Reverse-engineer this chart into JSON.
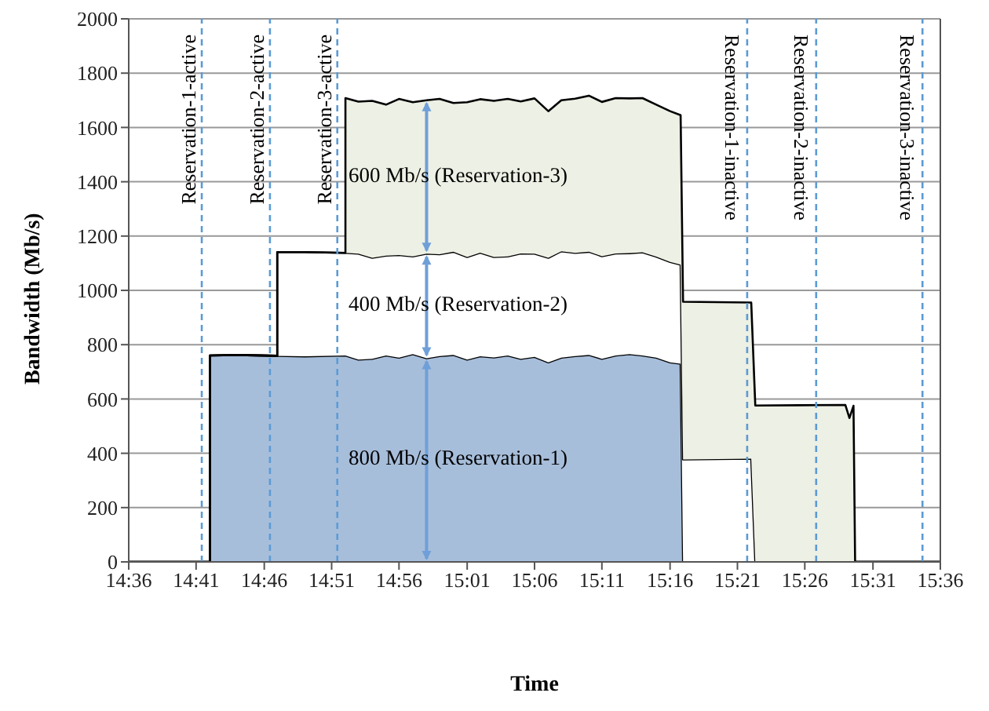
{
  "chart_data": {
    "type": "area",
    "stacked": true,
    "xlabel": "Time",
    "ylabel": "Bandwidth (Mb/s)",
    "x": [
      14.6,
      14.7,
      14.7,
      14.733,
      14.783,
      14.783,
      14.817,
      14.867,
      14.867,
      14.883,
      14.9,
      14.917,
      14.933,
      14.95,
      14.967,
      14.983,
      15.0,
      15.017,
      15.033,
      15.05,
      15.067,
      15.083,
      15.1,
      15.117,
      15.133,
      15.15,
      15.167,
      15.183,
      15.2,
      15.217,
      15.233,
      15.25,
      15.267,
      15.28,
      15.283,
      15.367,
      15.372,
      15.483,
      15.488,
      15.493,
      15.495,
      15.6
    ],
    "series": [
      {
        "color": "#a7bedb",
        "values": [
          0,
          0,
          760,
          762,
          759,
          759,
          757,
          760,
          760,
          745,
          748,
          760,
          752,
          765,
          750,
          758,
          762,
          745,
          757,
          753,
          760,
          748,
          755,
          735,
          752,
          758,
          762,
          748,
          760,
          765,
          760,
          752,
          735,
          730,
          0,
          0,
          0,
          0,
          0,
          0,
          0,
          0
        ]
      },
      {
        "color": "#ffffff",
        "values": [
          0,
          0,
          0,
          0,
          0,
          382,
          384,
          378,
          378,
          390,
          372,
          368,
          378,
          360,
          385,
          375,
          380,
          378,
          382,
          370,
          365,
          388,
          380,
          385,
          392,
          380,
          380,
          378,
          376,
          372,
          380,
          372,
          370,
          365,
          377,
          380,
          0,
          0,
          0,
          0,
          0,
          0
        ]
      },
      {
        "color": "#edf0e4",
        "values": [
          0,
          0,
          0,
          0,
          0,
          0,
          0,
          0,
          570,
          560,
          578,
          556,
          575,
          568,
          565,
          572,
          548,
          570,
          565,
          575,
          580,
          560,
          572,
          540,
          556,
          568,
          575,
          568,
          572,
          570,
          568,
          560,
          555,
          550,
          581,
          575,
          576,
          578,
          530,
          575,
          0,
          0
        ]
      }
    ],
    "xlim": [
      14.6,
      15.6
    ],
    "xticks": [
      {
        "value": 14.6,
        "label": "14:36"
      },
      {
        "value": 14.683,
        "label": "14:41"
      },
      {
        "value": 14.767,
        "label": "14:46"
      },
      {
        "value": 14.85,
        "label": "14:51"
      },
      {
        "value": 14.933,
        "label": "14:56"
      },
      {
        "value": 15.017,
        "label": "15:01"
      },
      {
        "value": 15.1,
        "label": "15:06"
      },
      {
        "value": 15.183,
        "label": "15:11"
      },
      {
        "value": 15.267,
        "label": "15:16"
      },
      {
        "value": 15.35,
        "label": "15:21"
      },
      {
        "value": 15.433,
        "label": "15:26"
      },
      {
        "value": 15.517,
        "label": "15:31"
      },
      {
        "value": 15.6,
        "label": "15:36"
      }
    ],
    "ylim": [
      0,
      2000
    ],
    "yticks": [
      0,
      200,
      400,
      600,
      800,
      1000,
      1200,
      1400,
      1600,
      1800,
      2000
    ],
    "grid": "y",
    "ref_lines": [
      {
        "axis": "x",
        "value": 14.69,
        "label": "Reservation-1-active",
        "color": "#5b9bd5",
        "line_style": "dashed"
      },
      {
        "axis": "x",
        "value": 14.774,
        "label": "Reservation-2-active",
        "color": "#5b9bd5",
        "line_style": "dashed"
      },
      {
        "axis": "x",
        "value": 14.857,
        "label": "Reservation-3-active",
        "color": "#5b9bd5",
        "line_style": "dashed"
      },
      {
        "axis": "x",
        "value": 15.362,
        "label": "Reservation-1-inactive",
        "color": "#5b9bd5",
        "line_style": "dashed"
      },
      {
        "axis": "x",
        "value": 15.447,
        "label": "Reservation-2-inactive",
        "color": "#5b9bd5",
        "line_style": "dashed"
      },
      {
        "axis": "x",
        "value": 15.578,
        "label": "Reservation-3-inactive",
        "color": "#5b9bd5",
        "line_style": "dashed"
      }
    ],
    "annotations": [
      "800 Mb/s (Reservation-1)",
      "400 Mb/s (Reservation-2)",
      "600 Mb/s (Reservation-3)"
    ]
  }
}
